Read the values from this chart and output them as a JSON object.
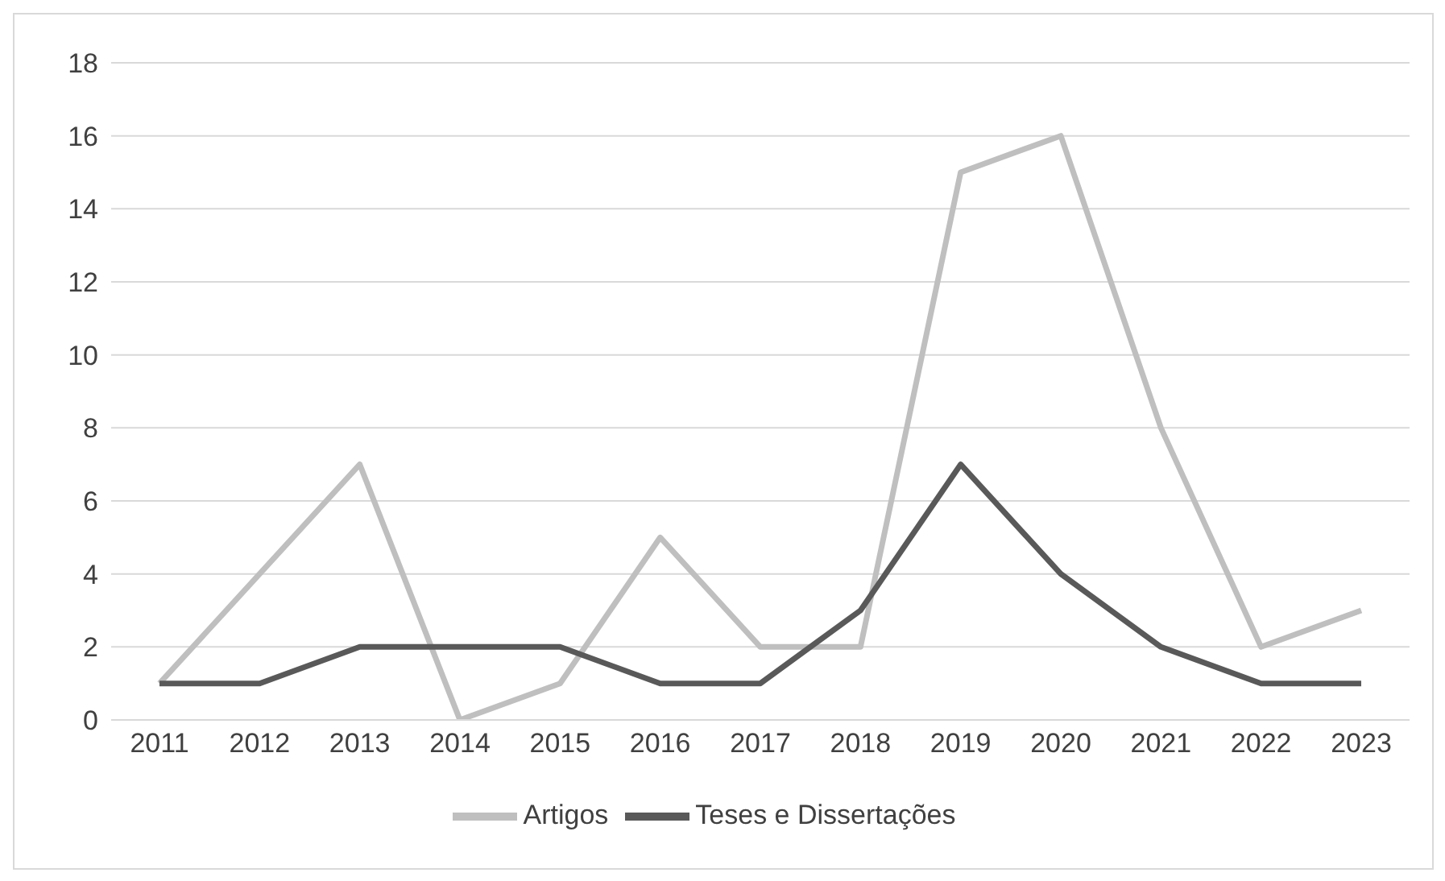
{
  "chart_data": {
    "type": "line",
    "categories": [
      "2011",
      "2012",
      "2013",
      "2014",
      "2015",
      "2016",
      "2017",
      "2018",
      "2019",
      "2020",
      "2021",
      "2022",
      "2023"
    ],
    "series": [
      {
        "name": "Artigos",
        "color": "#bfbfbf",
        "values": [
          1,
          4,
          7,
          0,
          1,
          5,
          2,
          2,
          15,
          16,
          8,
          2,
          3
        ]
      },
      {
        "name": "Teses e Dissertações",
        "color": "#595959",
        "values": [
          1,
          1,
          2,
          2,
          2,
          1,
          1,
          3,
          7,
          4,
          2,
          1,
          1
        ]
      }
    ],
    "ylim": [
      0,
      18
    ],
    "yticks": [
      0,
      2,
      4,
      6,
      8,
      10,
      12,
      14,
      16,
      18
    ],
    "grid": "y",
    "legend": "bottom",
    "marker": "none",
    "line_style": "solid"
  }
}
